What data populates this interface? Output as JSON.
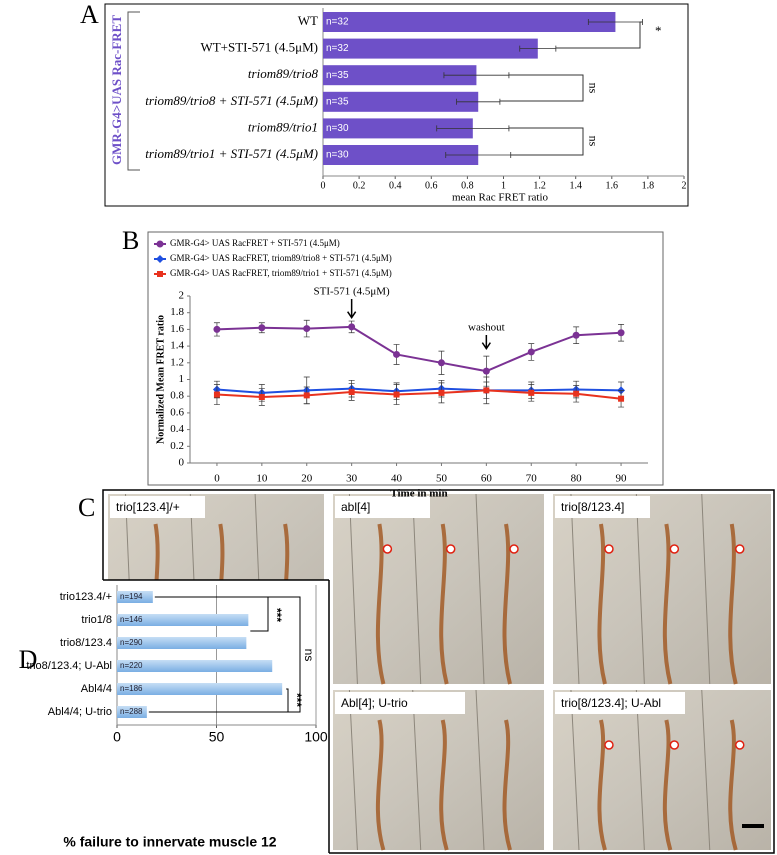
{
  "chart_data": [
    {
      "type": "hbar",
      "panel": "A",
      "title": "GMR-G4>UAS Rac-FRET",
      "categories": [
        "WT",
        "WT+STI-571 (4.5μM)",
        "triom89/trio8",
        "triom89/trio8 + STI-571 (4.5μM)",
        "triom89/trio1",
        "triom89/trio1 + STI-571 (4.5μM)"
      ],
      "values": [
        1.62,
        1.19,
        0.85,
        0.86,
        0.83,
        0.86
      ],
      "errors": [
        0.15,
        0.1,
        0.18,
        0.12,
        0.2,
        0.18
      ],
      "bar_labels": [
        "n=32",
        "n=32",
        "n=35",
        "n=35",
        "n=30",
        "n=30"
      ],
      "color": "#6e50c8",
      "xlabel": "mean Rac FRET ratio",
      "xlim": [
        0,
        2
      ],
      "xticks": [
        0,
        0.2,
        0.4,
        0.6,
        0.8,
        1,
        1.2,
        1.4,
        1.6,
        1.8,
        2
      ],
      "annotations": [
        "*",
        "ns",
        "ns"
      ]
    },
    {
      "type": "line",
      "panel": "B",
      "xlabel": "Time in min",
      "ylabel": "Normalized Mean FRET ratio",
      "x": [
        0,
        10,
        20,
        30,
        40,
        50,
        60,
        70,
        80,
        90
      ],
      "xlim": [
        -6,
        96
      ],
      "xticks": [
        0,
        10,
        20,
        30,
        40,
        50,
        60,
        70,
        80,
        90
      ],
      "ylim": [
        0,
        2
      ],
      "yticks": [
        0,
        0.2,
        0.4,
        0.6,
        0.8,
        1,
        1.2,
        1.4,
        1.6,
        1.8,
        2
      ],
      "series": [
        {
          "name": "GMR-G4> UAS RacFRET + STI-571 (4.5μM)",
          "color": "#7b3294",
          "marker": "circle",
          "values": [
            1.6,
            1.62,
            1.61,
            1.63,
            1.3,
            1.2,
            1.1,
            1.33,
            1.53,
            1.56
          ],
          "errors": [
            0.08,
            0.06,
            0.1,
            0.07,
            0.12,
            0.14,
            0.18,
            0.1,
            0.1,
            0.1
          ]
        },
        {
          "name": "GMR-G4> UAS RacFRET, triom89/trio8 + STI-571 (4.5μM)",
          "color": "#1f4fe0",
          "marker": "diamond",
          "values": [
            0.88,
            0.84,
            0.87,
            0.89,
            0.86,
            0.89,
            0.87,
            0.87,
            0.88,
            0.87
          ],
          "errors": [
            0.1,
            0.1,
            0.16,
            0.1,
            0.1,
            0.1,
            0.1,
            0.1,
            0.1,
            0.1
          ]
        },
        {
          "name": "GMR-G4> UAS RacFRET, triom89/trio1 + STI-571 (4.5μM)",
          "color": "#e8321e",
          "marker": "square",
          "values": [
            0.82,
            0.79,
            0.81,
            0.85,
            0.82,
            0.84,
            0.87,
            0.84,
            0.83,
            0.77
          ],
          "errors": [
            0.12,
            0.1,
            0.1,
            0.1,
            0.12,
            0.12,
            0.16,
            0.1,
            0.1,
            0.1
          ]
        }
      ],
      "annotations": [
        {
          "text": "STI-571 (4.5μM)",
          "x": 30
        },
        {
          "text": "washout",
          "x": 60
        }
      ]
    },
    {
      "type": "hbar",
      "panel": "D",
      "categories": [
        "trio123.4/+",
        "trio1/8",
        "trio8/123.4",
        "trio8/123.4; U-Abl",
        "Abl4/4",
        "Abl4/4; U-trio"
      ],
      "values": [
        18,
        66,
        65,
        78,
        83,
        15
      ],
      "bar_labels": [
        "n=194",
        "n=146",
        "n=290",
        "n=220",
        "n=186",
        "n=288"
      ],
      "color": "#8bb9e8",
      "xlabel": "% failure to innervate muscle 12",
      "xlim": [
        0,
        100
      ],
      "xticks": [
        0,
        50,
        100
      ],
      "annotations": [
        "***",
        "***",
        "ns"
      ]
    }
  ],
  "image_panels": {
    "panel": "C",
    "labels": [
      "trio[123.4]/+",
      "abl[4]",
      "trio[8/123.4]",
      "Abl[4]; U-trio",
      "trio[8/123.4]; U-Abl"
    ]
  }
}
